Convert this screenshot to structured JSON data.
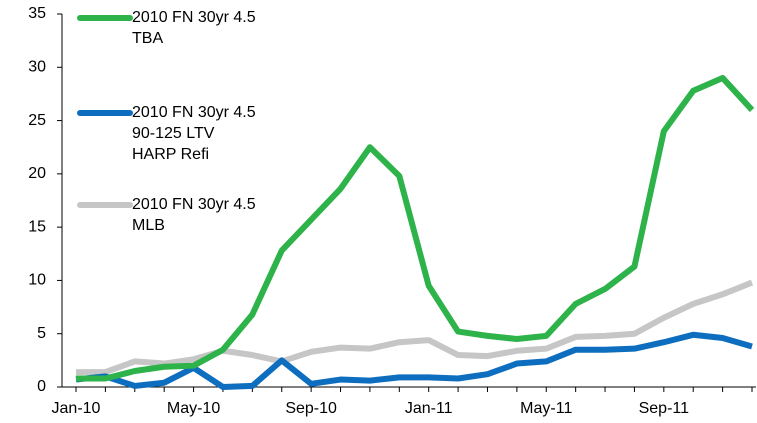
{
  "chart_data": {
    "type": "line",
    "categories": [
      "Jan-10",
      null,
      null,
      null,
      "May-10",
      null,
      null,
      null,
      "Sep-10",
      null,
      null,
      null,
      "Jan-11",
      null,
      null,
      null,
      "May-11",
      null,
      null,
      null,
      "Sep-11",
      null,
      null,
      null
    ],
    "series": [
      {
        "name": "2010 FN 30yr 4.5\nTBA",
        "color": "#2db34a",
        "values": [
          0.8,
          0.8,
          1.5,
          1.9,
          2.0,
          3.5,
          6.8,
          12.8,
          15.7,
          18.6,
          22.5,
          19.8,
          9.5,
          5.2,
          4.8,
          4.5,
          4.8,
          7.8,
          9.2,
          11.3,
          24.0,
          27.8,
          29.0,
          26.0
        ]
      },
      {
        "name": "2010 FN 30yr 4.5\n90-125 LTV\nHARP Refi",
        "color": "#0d6ebf",
        "values": [
          0.7,
          1.0,
          0.1,
          0.4,
          1.8,
          0.0,
          0.1,
          2.5,
          0.3,
          0.7,
          0.6,
          0.9,
          0.9,
          0.8,
          1.2,
          2.2,
          2.4,
          3.5,
          3.5,
          3.6,
          4.2,
          4.9,
          4.6,
          3.8
        ]
      },
      {
        "name": "2010 FN 30yr 4.5\nMLB",
        "color": "#c6c6c6",
        "values": [
          1.4,
          1.4,
          2.4,
          2.2,
          2.6,
          3.4,
          3.0,
          2.4,
          3.3,
          3.7,
          3.6,
          4.2,
          4.4,
          3.0,
          2.9,
          3.4,
          3.6,
          4.7,
          4.8,
          5.0,
          6.5,
          7.8,
          8.7,
          9.8
        ]
      }
    ],
    "ylim": [
      0,
      35
    ],
    "yticks": [
      0,
      5,
      10,
      15,
      20,
      25,
      30,
      35
    ],
    "grid": false,
    "legend": "upper-left"
  }
}
